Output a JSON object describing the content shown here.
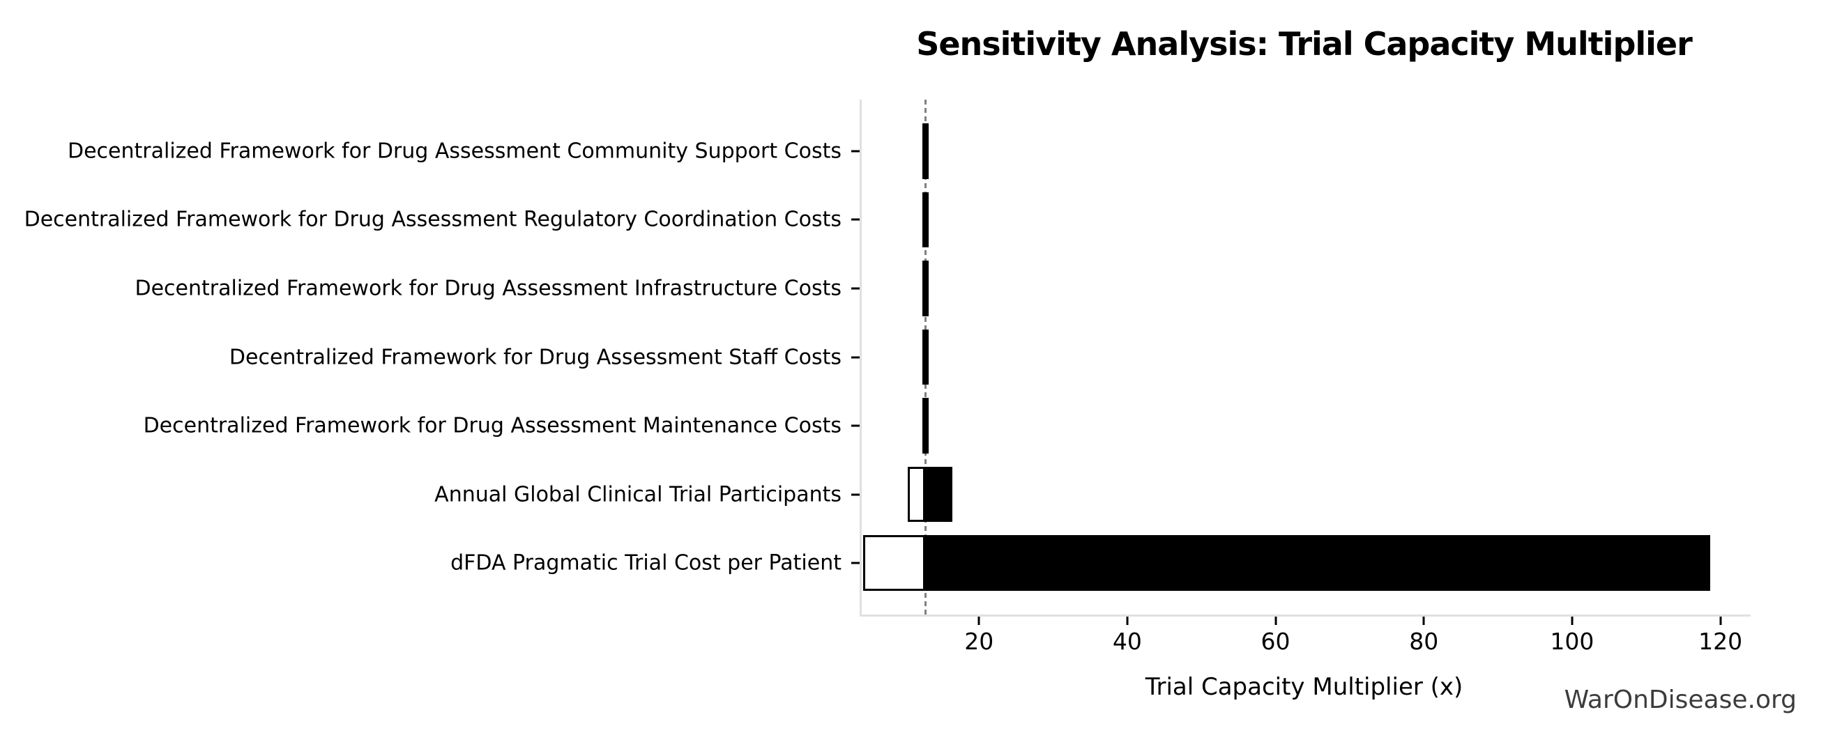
{
  "chart_data": {
    "type": "bar",
    "variant": "tornado-sensitivity",
    "orientation": "horizontal",
    "title": "Sensitivity Analysis: Trial Capacity Multiplier",
    "xlabel": "Trial Capacity Multiplier (x)",
    "watermark": "WarOnDisease.org",
    "baseline": 12.5,
    "xlim": [
      3.9,
      123.8
    ],
    "xticks": [
      20,
      40,
      60,
      80,
      100,
      120
    ],
    "grid": false,
    "legend": false,
    "rows_order": "top-to-bottom",
    "rows": [
      {
        "label": "Decentralized Framework for Drug Assessment Community Support Costs",
        "low": 12.1,
        "high": 12.9
      },
      {
        "label": "Decentralized Framework for Drug Assessment Regulatory Coordination Costs",
        "low": 12.1,
        "high": 12.9
      },
      {
        "label": "Decentralized Framework for Drug Assessment Infrastructure Costs",
        "low": 12.1,
        "high": 12.9
      },
      {
        "label": "Decentralized Framework for Drug Assessment Staff Costs",
        "low": 12.1,
        "high": 12.9
      },
      {
        "label": "Decentralized Framework for Drug Assessment Maintenance Costs",
        "low": 12.1,
        "high": 12.9
      },
      {
        "label": "Annual Global Clinical Trial Participants",
        "low": 10.1,
        "high": 16.1
      },
      {
        "label": "dFDA Pragmatic Trial Cost per Patient",
        "low": 4.1,
        "high": 118.3
      }
    ],
    "colors": {
      "bar_high_fill": "#000000",
      "bar_low_fill": "#ffffff",
      "bar_edge": "#000000",
      "baseline_line": "#808080",
      "spine": "#e0e0e0",
      "tick": "#000000",
      "text": "#000000",
      "watermark_text": "#3c3c3c",
      "background": "#ffffff"
    }
  }
}
